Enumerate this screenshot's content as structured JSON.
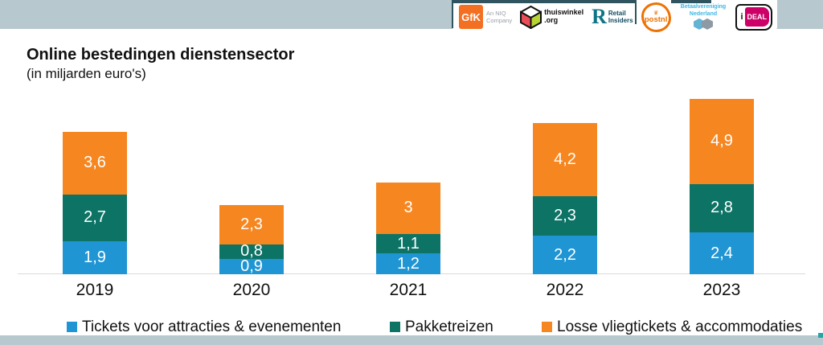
{
  "title": {
    "main": "Online bestedingen dienstensector",
    "subtitle": "(in miljarden euro's)"
  },
  "header": {
    "logos": {
      "gfk": {
        "text": "GfK",
        "sub_line1": "An NIQ",
        "sub_line2": "Company"
      },
      "thuiswinkel": {
        "line1": "thuiswinkel",
        "line2": ".org"
      },
      "retail_insiders": {
        "letter": "R",
        "line1": "Retail",
        "line2": "Insiders"
      },
      "postnl": {
        "crown": "♛",
        "text": "postnl"
      },
      "betaalvereniging": {
        "line1": "Betaalvereniging",
        "line2": "Nederland"
      },
      "ideal": {
        "i": "i",
        "deal": "DEAL"
      }
    }
  },
  "chart_data": {
    "type": "bar",
    "stacked": true,
    "title": "Online bestedingen dienstensector",
    "subtitle": "(in miljarden euro's)",
    "categories": [
      "2019",
      "2020",
      "2021",
      "2022",
      "2023"
    ],
    "series": [
      {
        "name": "Tickets voor attracties & evenementen",
        "color": "#2095d3",
        "values": [
          1.9,
          0.9,
          1.2,
          2.2,
          2.4
        ],
        "labels": [
          "1,9",
          "0,9",
          "1,2",
          "2,2",
          "2,4"
        ]
      },
      {
        "name": "Pakketreizen",
        "color": "#0d7365",
        "values": [
          2.7,
          0.8,
          1.1,
          2.3,
          2.8
        ],
        "labels": [
          "2,7",
          "0,8",
          "1,1",
          "2,3",
          "2,8"
        ]
      },
      {
        "name": "Losse vliegtickets & accommodaties",
        "color": "#f6861f",
        "values": [
          3.6,
          2.3,
          3,
          4.2,
          4.9
        ],
        "labels": [
          "3,6",
          "2,3",
          "3",
          "4,2",
          "4,9"
        ]
      }
    ],
    "totals": [
      8.2,
      4.0,
      5.3,
      8.7,
      10.1
    ],
    "ylim": [
      0,
      10.5
    ],
    "value_label_color": "#ffffff",
    "grid": false,
    "legend_position": "bottom"
  },
  "colors": {
    "header_strip": "#b7c8ce",
    "accent_dark_teal": "#2f545f",
    "axis_line": "#d9d9d9"
  }
}
